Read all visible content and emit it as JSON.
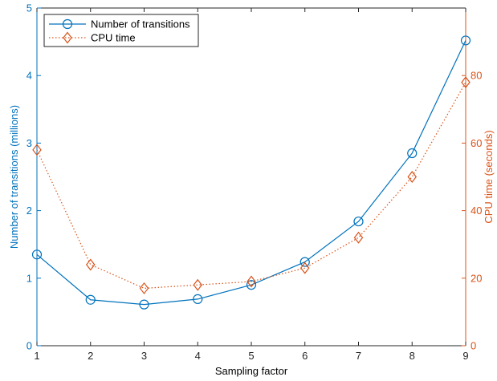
{
  "chart_data": {
    "type": "line",
    "title": "",
    "xlabel": "Sampling factor",
    "x": [
      1,
      2,
      3,
      4,
      5,
      6,
      7,
      8,
      9
    ],
    "xlim": [
      1,
      9
    ],
    "xticks": [
      "1",
      "2",
      "3",
      "4",
      "5",
      "6",
      "7",
      "8",
      "9"
    ],
    "grid": false,
    "legend_position": "top-left",
    "left_axis": {
      "label": "Number of transitions (millions)",
      "ylim": [
        0,
        5
      ],
      "ticks": [
        "0",
        "1",
        "2",
        "3",
        "4",
        "5"
      ],
      "color": "#0072BD"
    },
    "right_axis": {
      "label": "CPU time (seconds)",
      "ylim": [
        0,
        100
      ],
      "ticks": [
        "0",
        "20",
        "40",
        "60",
        "80"
      ],
      "color": "#D95319"
    },
    "series": [
      {
        "name": "Number of transitions",
        "axis": "left",
        "marker": "circle",
        "line_style": "solid",
        "color": "#0072BD",
        "values": [
          1.35,
          0.68,
          0.61,
          0.69,
          0.9,
          1.24,
          1.84,
          2.85,
          4.52
        ]
      },
      {
        "name": "CPU time",
        "axis": "right",
        "marker": "diamond",
        "line_style": "dotted",
        "color": "#D95319",
        "values": [
          58,
          24,
          17,
          18,
          19,
          23,
          32,
          50,
          78
        ]
      }
    ]
  }
}
